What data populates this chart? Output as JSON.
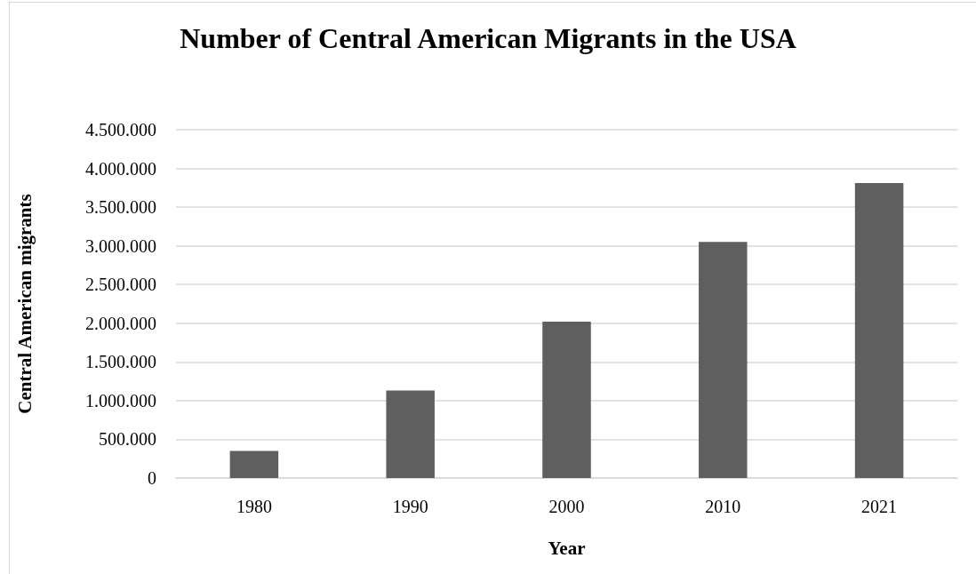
{
  "chart_data": {
    "type": "bar",
    "title": "Number of Central American Migrants in the USA",
    "xlabel": "Year",
    "ylabel": "Central American migrants",
    "categories": [
      "1980",
      "1990",
      "2000",
      "2010",
      "2021"
    ],
    "values": [
      350000,
      1130000,
      2020000,
      3050000,
      3810000
    ],
    "color": "#5f5f5f",
    "ylim": [
      0,
      4500000
    ],
    "yticks": [
      {
        "value": 0,
        "label": "0"
      },
      {
        "value": 500000,
        "label": "500.000"
      },
      {
        "value": 1000000,
        "label": "1.000.000"
      },
      {
        "value": 1500000,
        "label": "1.500.000"
      },
      {
        "value": 2000000,
        "label": "2.000.000"
      },
      {
        "value": 2500000,
        "label": "2.500.000"
      },
      {
        "value": 3000000,
        "label": "3.000.000"
      },
      {
        "value": 3500000,
        "label": "3.500.000"
      },
      {
        "value": 4000000,
        "label": "4.000.000"
      },
      {
        "value": 4500000,
        "label": "4.500.000"
      }
    ],
    "grid": "y"
  }
}
